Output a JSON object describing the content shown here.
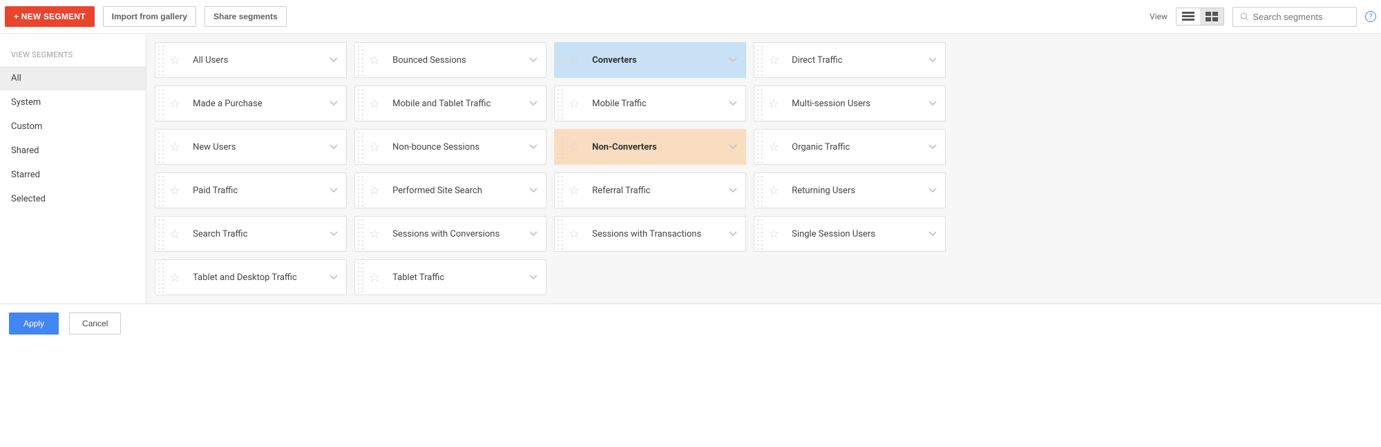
{
  "toolbar": {
    "new_segment_label": "+ NEW SEGMENT",
    "import_label": "Import from gallery",
    "share_label": "Share segments",
    "view_label": "View",
    "search_placeholder": "Search segments"
  },
  "sidebar": {
    "heading": "VIEW SEGMENTS",
    "items": [
      {
        "label": "All",
        "active": true
      },
      {
        "label": "System",
        "active": false
      },
      {
        "label": "Custom",
        "active": false
      },
      {
        "label": "Shared",
        "active": false
      },
      {
        "label": "Starred",
        "active": false
      },
      {
        "label": "Selected",
        "active": false
      }
    ]
  },
  "segments": [
    {
      "label": "All Users",
      "highlight": ""
    },
    {
      "label": "Bounced Sessions",
      "highlight": ""
    },
    {
      "label": "Converters",
      "highlight": "blue"
    },
    {
      "label": "Direct Traffic",
      "highlight": ""
    },
    {
      "label": "Made a Purchase",
      "highlight": ""
    },
    {
      "label": "Mobile and Tablet Traffic",
      "highlight": ""
    },
    {
      "label": "Mobile Traffic",
      "highlight": ""
    },
    {
      "label": "Multi-session Users",
      "highlight": ""
    },
    {
      "label": "New Users",
      "highlight": ""
    },
    {
      "label": "Non-bounce Sessions",
      "highlight": ""
    },
    {
      "label": "Non-Converters",
      "highlight": "orange"
    },
    {
      "label": "Organic Traffic",
      "highlight": ""
    },
    {
      "label": "Paid Traffic",
      "highlight": ""
    },
    {
      "label": "Performed Site Search",
      "highlight": ""
    },
    {
      "label": "Referral Traffic",
      "highlight": ""
    },
    {
      "label": "Returning Users",
      "highlight": ""
    },
    {
      "label": "Search Traffic",
      "highlight": ""
    },
    {
      "label": "Sessions with Conversions",
      "highlight": ""
    },
    {
      "label": "Sessions with Transactions",
      "highlight": ""
    },
    {
      "label": "Single Session Users",
      "highlight": ""
    },
    {
      "label": "Tablet and Desktop Traffic",
      "highlight": ""
    },
    {
      "label": "Tablet Traffic",
      "highlight": ""
    }
  ],
  "footer": {
    "apply_label": "Apply",
    "cancel_label": "Cancel"
  },
  "colors": {
    "primary_button": "#e8442e",
    "apply_button": "#4285f4",
    "highlight_blue": "#c8e1f4",
    "highlight_orange": "#fadcc0",
    "background": "#f7f7f7",
    "border": "#e0e0e0"
  }
}
